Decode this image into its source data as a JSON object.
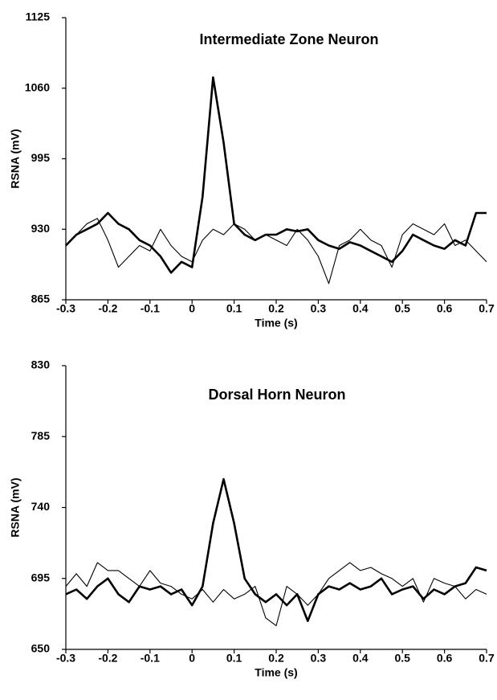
{
  "chart_data": [
    {
      "type": "line",
      "title": "Intermediate Zone Neuron",
      "x_label": "Time (s)",
      "y_label": "RSNA (mV)",
      "x": [
        -0.3,
        -0.275,
        -0.25,
        -0.225,
        -0.2,
        -0.175,
        -0.15,
        -0.125,
        -0.1,
        -0.075,
        -0.05,
        -0.025,
        0,
        0.025,
        0.05,
        0.075,
        0.1,
        0.125,
        0.15,
        0.175,
        0.2,
        0.225,
        0.25,
        0.275,
        0.3,
        0.325,
        0.35,
        0.375,
        0.4,
        0.425,
        0.45,
        0.475,
        0.5,
        0.525,
        0.55,
        0.575,
        0.6,
        0.625,
        0.65,
        0.675,
        0.7
      ],
      "series": [
        {
          "color": "#000000",
          "values": [
            915,
            925,
            930,
            935,
            945,
            935,
            930,
            920,
            915,
            905,
            890,
            900,
            895,
            960,
            1070,
            1010,
            935,
            925,
            920,
            925,
            925,
            930,
            928,
            930,
            920,
            915,
            912,
            918,
            915,
            910,
            905,
            900,
            910,
            925,
            920,
            915,
            912,
            920,
            915,
            945,
            945
          ]
        },
        {
          "color": "#000000",
          "values": [
            915,
            925,
            935,
            940,
            920,
            895,
            905,
            915,
            910,
            930,
            915,
            905,
            900,
            920,
            930,
            925,
            935,
            930,
            920,
            925,
            920,
            915,
            930,
            920,
            905,
            880,
            915,
            920,
            930,
            920,
            915,
            895,
            925,
            935,
            930,
            925,
            935,
            915,
            920,
            910,
            900
          ]
        }
      ],
      "xlim": [
        -0.3,
        0.7
      ],
      "xticks": [
        -0.3,
        -0.2,
        -0.1,
        0,
        0.1,
        0.2,
        0.3,
        0.4,
        0.5,
        0.6,
        0.7
      ],
      "ylim": [
        865,
        1125
      ],
      "yticks": [
        865,
        930,
        995,
        1060,
        1125
      ],
      "grid": false
    },
    {
      "type": "line",
      "title": "Dorsal Horn Neuron",
      "x_label": "Time (s)",
      "y_label": "RSNA (mV)",
      "x": [
        -0.3,
        -0.275,
        -0.25,
        -0.225,
        -0.2,
        -0.175,
        -0.15,
        -0.125,
        -0.1,
        -0.075,
        -0.05,
        -0.025,
        0,
        0.025,
        0.05,
        0.075,
        0.1,
        0.125,
        0.15,
        0.175,
        0.2,
        0.225,
        0.25,
        0.275,
        0.3,
        0.325,
        0.35,
        0.375,
        0.4,
        0.425,
        0.45,
        0.475,
        0.5,
        0.525,
        0.55,
        0.575,
        0.6,
        0.625,
        0.65,
        0.675,
        0.7
      ],
      "series": [
        {
          "color": "#000000",
          "values": [
            685,
            688,
            682,
            690,
            695,
            685,
            680,
            690,
            688,
            690,
            685,
            688,
            678,
            690,
            730,
            758,
            730,
            695,
            685,
            680,
            685,
            678,
            685,
            668,
            685,
            690,
            688,
            692,
            688,
            690,
            695,
            685,
            688,
            690,
            682,
            688,
            685,
            690,
            692,
            702,
            700
          ]
        },
        {
          "color": "#000000",
          "values": [
            690,
            698,
            690,
            705,
            700,
            700,
            695,
            690,
            700,
            692,
            690,
            685,
            682,
            688,
            680,
            688,
            682,
            685,
            690,
            670,
            665,
            690,
            685,
            678,
            685,
            695,
            700,
            705,
            700,
            702,
            698,
            695,
            690,
            695,
            680,
            695,
            692,
            690,
            682,
            688,
            685
          ]
        }
      ],
      "xlim": [
        -0.3,
        0.7
      ],
      "xticks": [
        -0.3,
        -0.2,
        -0.1,
        0,
        0.1,
        0.2,
        0.3,
        0.4,
        0.5,
        0.6,
        0.7
      ],
      "ylim": [
        650,
        830
      ],
      "yticks": [
        650,
        695,
        740,
        785,
        830
      ],
      "grid": false
    }
  ]
}
